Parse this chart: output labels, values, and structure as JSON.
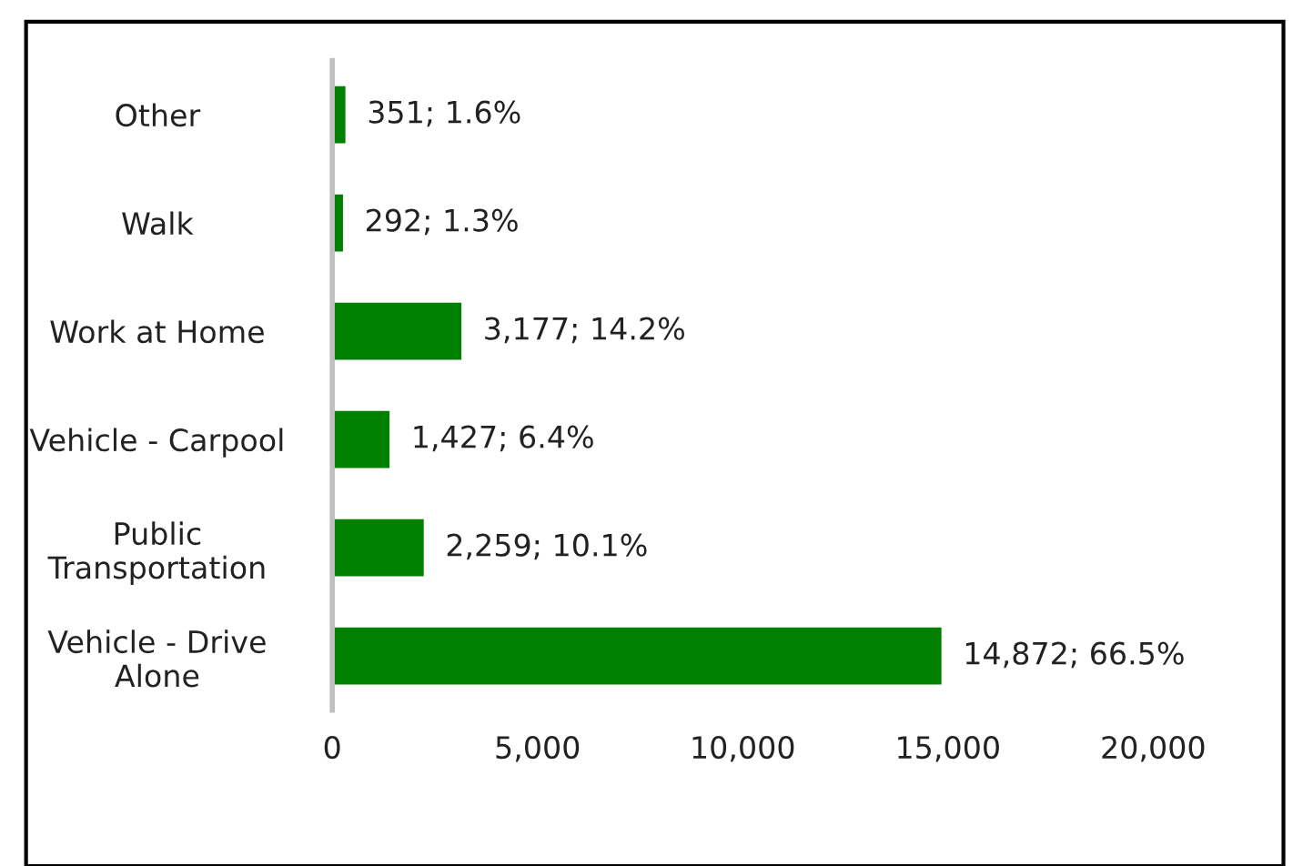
{
  "chart_data": {
    "type": "bar",
    "orientation": "horizontal",
    "categories": [
      "Other",
      "Walk",
      "Work at Home",
      "Vehicle - Carpool",
      "Public\nTransportation",
      "Vehicle - Drive\nAlone"
    ],
    "values": [
      351,
      292,
      3177,
      1427,
      2259,
      14872
    ],
    "value_labels": [
      "351; 1.6%",
      "292; 1.3%",
      "3,177; 14.2%",
      "1,427; 6.4%",
      "2,259; 10.1%",
      "14,872; 66.5%"
    ],
    "color": "#008000",
    "xlim": [
      0,
      20000
    ],
    "xticks": [
      {
        "value": 0,
        "label": "0"
      },
      {
        "value": 5000,
        "label": "5,000"
      },
      {
        "value": 10000,
        "label": "10,000"
      },
      {
        "value": 15000,
        "label": "15,000"
      },
      {
        "value": 20000,
        "label": "20,000"
      }
    ],
    "grid": false
  }
}
